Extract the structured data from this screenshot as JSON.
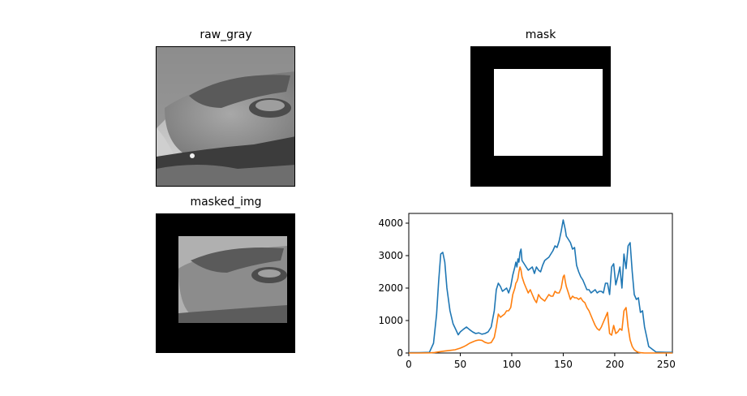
{
  "figure": {
    "raw_gray_title": "raw_gray",
    "mask_title": "mask",
    "masked_img_title": "masked_img"
  },
  "colors": {
    "series1": "#1f77b4",
    "series2": "#ff7f0e",
    "mask_bg": "#000000",
    "mask_fg": "#ffffff"
  },
  "images": {
    "raw_gray": "grayscale aerial landscape photo",
    "mask": "black square with centered white rectangle",
    "masked_img": "photo visible only inside mask window"
  },
  "chart_data": {
    "type": "line",
    "title": "",
    "xlabel": "",
    "ylabel": "",
    "xlim": [
      0,
      256
    ],
    "ylim": [
      0,
      4300
    ],
    "xticks": [
      0,
      50,
      100,
      150,
      200,
      250
    ],
    "yticks": [
      0,
      1000,
      2000,
      3000,
      4000
    ],
    "grid": false,
    "series": [
      {
        "x": [
          0,
          10,
          20,
          24,
          27,
          29,
          31,
          33,
          35,
          37,
          40,
          43,
          46,
          48,
          50,
          53,
          56,
          59,
          62,
          65,
          68,
          71,
          74,
          77,
          80,
          83,
          85,
          87,
          89,
          91,
          93,
          95,
          97,
          99,
          101,
          103,
          104,
          105,
          106,
          107,
          108,
          109,
          110,
          112,
          114,
          116,
          118,
          120,
          122,
          124,
          126,
          128,
          130,
          132,
          134,
          136,
          138,
          140,
          142,
          144,
          146,
          148,
          150,
          151,
          152,
          153,
          155,
          157,
          159,
          161,
          163,
          165,
          167,
          169,
          171,
          173,
          175,
          177,
          179,
          181,
          183,
          185,
          187,
          189,
          191,
          193,
          195,
          197,
          199,
          201,
          203,
          205,
          207,
          209,
          211,
          213,
          215,
          217,
          219,
          221,
          223,
          225,
          227,
          229,
          231,
          233,
          240,
          250,
          256
        ],
        "values": [
          10,
          10,
          20,
          300,
          1200,
          2200,
          3050,
          3100,
          2800,
          2000,
          1300,
          900,
          700,
          560,
          650,
          730,
          800,
          720,
          650,
          600,
          620,
          580,
          600,
          650,
          800,
          1300,
          1950,
          2150,
          2050,
          1900,
          1950,
          2000,
          1850,
          2050,
          2400,
          2650,
          2800,
          2650,
          2900,
          2800,
          3100,
          3200,
          2850,
          2750,
          2650,
          2550,
          2600,
          2650,
          2450,
          2650,
          2550,
          2500,
          2700,
          2850,
          2900,
          2950,
          3050,
          3150,
          3300,
          3250,
          3450,
          3750,
          4100,
          3950,
          3800,
          3600,
          3500,
          3400,
          3200,
          3250,
          2700,
          2500,
          2350,
          2250,
          2100,
          1950,
          1950,
          1850,
          1900,
          1950,
          1850,
          1900,
          1900,
          1850,
          2150,
          2150,
          1800,
          2650,
          2750,
          2100,
          2350,
          2650,
          2000,
          3050,
          2600,
          3300,
          3400,
          2500,
          1800,
          1650,
          1700,
          1250,
          1300,
          800,
          500,
          200,
          30,
          20,
          20
        ]
      },
      {
        "x": [
          0,
          10,
          20,
          25,
          30,
          35,
          40,
          45,
          50,
          53,
          56,
          59,
          62,
          65,
          68,
          71,
          74,
          77,
          80,
          83,
          85,
          87,
          89,
          91,
          93,
          95,
          97,
          99,
          101,
          103,
          104,
          105,
          106,
          107,
          108,
          109,
          110,
          112,
          114,
          116,
          118,
          120,
          122,
          124,
          126,
          128,
          130,
          132,
          134,
          136,
          138,
          140,
          142,
          144,
          146,
          148,
          150,
          151,
          152,
          153,
          155,
          157,
          159,
          161,
          163,
          165,
          167,
          169,
          171,
          173,
          175,
          177,
          179,
          181,
          183,
          185,
          187,
          189,
          191,
          193,
          195,
          197,
          199,
          201,
          203,
          205,
          207,
          209,
          211,
          213,
          215,
          217,
          219,
          221,
          223,
          225,
          227,
          229,
          231,
          233,
          240,
          250,
          256
        ],
        "values": [
          0,
          0,
          5,
          15,
          40,
          60,
          80,
          100,
          150,
          190,
          240,
          300,
          340,
          380,
          400,
          390,
          330,
          300,
          320,
          480,
          800,
          1200,
          1100,
          1150,
          1200,
          1300,
          1300,
          1400,
          1800,
          2000,
          2150,
          2200,
          2300,
          2500,
          2650,
          2550,
          2350,
          2150,
          2000,
          1850,
          1950,
          1800,
          1650,
          1550,
          1800,
          1700,
          1650,
          1600,
          1700,
          1800,
          1750,
          1750,
          1900,
          1850,
          1850,
          2000,
          2350,
          2400,
          2200,
          2050,
          1850,
          1650,
          1750,
          1700,
          1700,
          1650,
          1700,
          1600,
          1550,
          1400,
          1300,
          1150,
          1000,
          850,
          750,
          700,
          800,
          950,
          1100,
          1250,
          600,
          550,
          850,
          600,
          650,
          750,
          700,
          1300,
          1400,
          800,
          400,
          200,
          100,
          50,
          20,
          10,
          5,
          0,
          0,
          0,
          0,
          0,
          0
        ]
      }
    ]
  }
}
